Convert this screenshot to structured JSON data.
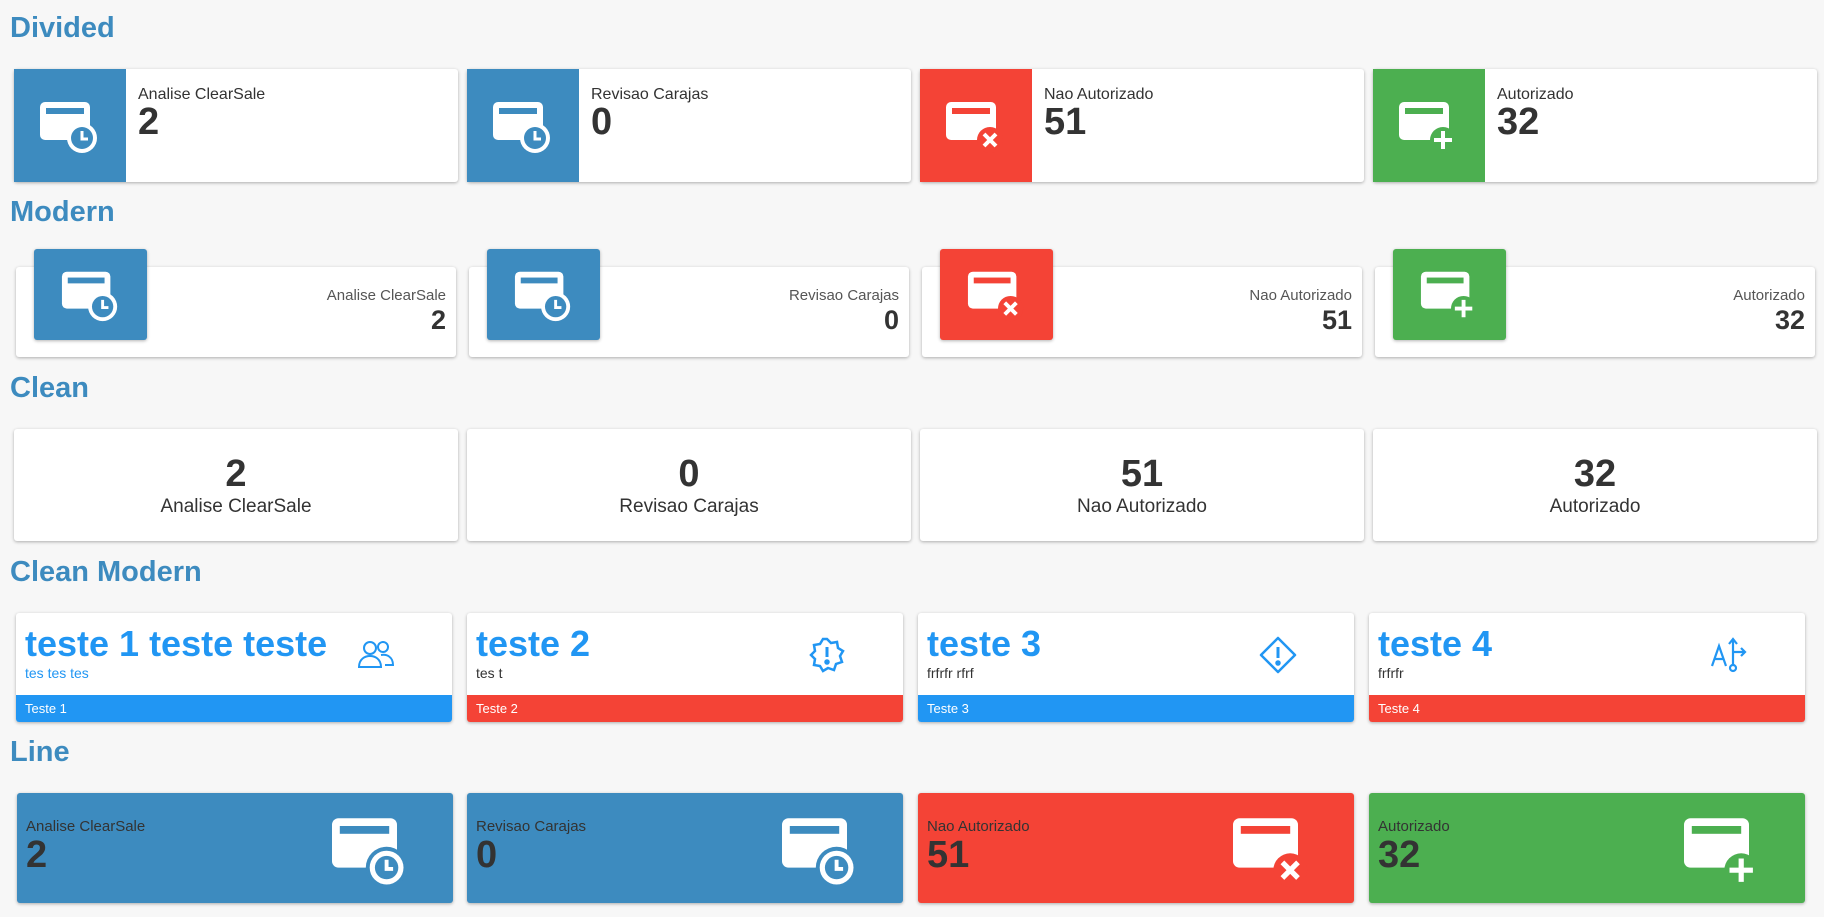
{
  "colors": {
    "blue": "#3d8bbf",
    "red": "#f44336",
    "green": "#4caf50",
    "bright_blue": "#2196f3"
  },
  "sections": {
    "divided": "Divided",
    "modern": "Modern",
    "clean": "Clean",
    "clean_modern": "Clean Modern",
    "line": "Line"
  },
  "stats": [
    {
      "label": "Analise ClearSale",
      "value": "2",
      "color": "blue",
      "icon": "card-clock-icon"
    },
    {
      "label": "Revisao Carajas",
      "value": "0",
      "color": "blue",
      "icon": "card-clock-icon"
    },
    {
      "label": "Nao Autorizado",
      "value": "51",
      "color": "red",
      "icon": "card-x-icon"
    },
    {
      "label": "Autorizado",
      "value": "32",
      "color": "green",
      "icon": "card-plus-icon"
    }
  ],
  "clean_modern": [
    {
      "title": "teste 1 teste teste",
      "subtitle": "tes tes tes",
      "footer": "Teste 1",
      "footer_color": "bright_blue",
      "icon": "users-icon"
    },
    {
      "title": "teste 2",
      "subtitle": "tes t",
      "footer": "Teste 2",
      "footer_color": "red",
      "icon": "alert-badge-icon"
    },
    {
      "title": "teste 3",
      "subtitle": "frfrfr rfrf",
      "footer": "Teste 3",
      "footer_color": "bright_blue",
      "icon": "alert-diamond-icon"
    },
    {
      "title": "teste 4",
      "subtitle": "frfrfr",
      "footer": "Teste 4",
      "footer_color": "red",
      "icon": "text-arrows-icon"
    }
  ]
}
